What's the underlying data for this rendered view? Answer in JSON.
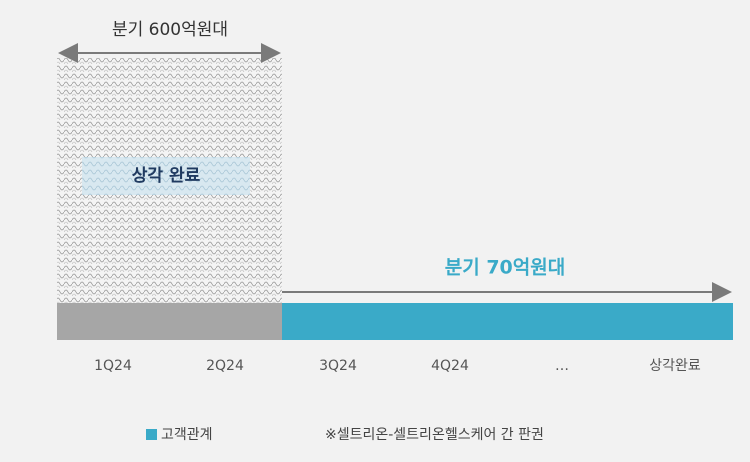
{
  "timeline": {
    "categories": [
      "1Q24",
      "2Q24",
      "3Q24",
      "4Q24",
      "…",
      "상각완료"
    ],
    "phase1_label": "분기 600억원대",
    "phase1_box": "상각 완료",
    "phase2_label": "분기 70억원대"
  },
  "legend": {
    "items": [
      "고객관계",
      "※셀트리온-셀트리온헬스케어 간 판권"
    ]
  }
}
